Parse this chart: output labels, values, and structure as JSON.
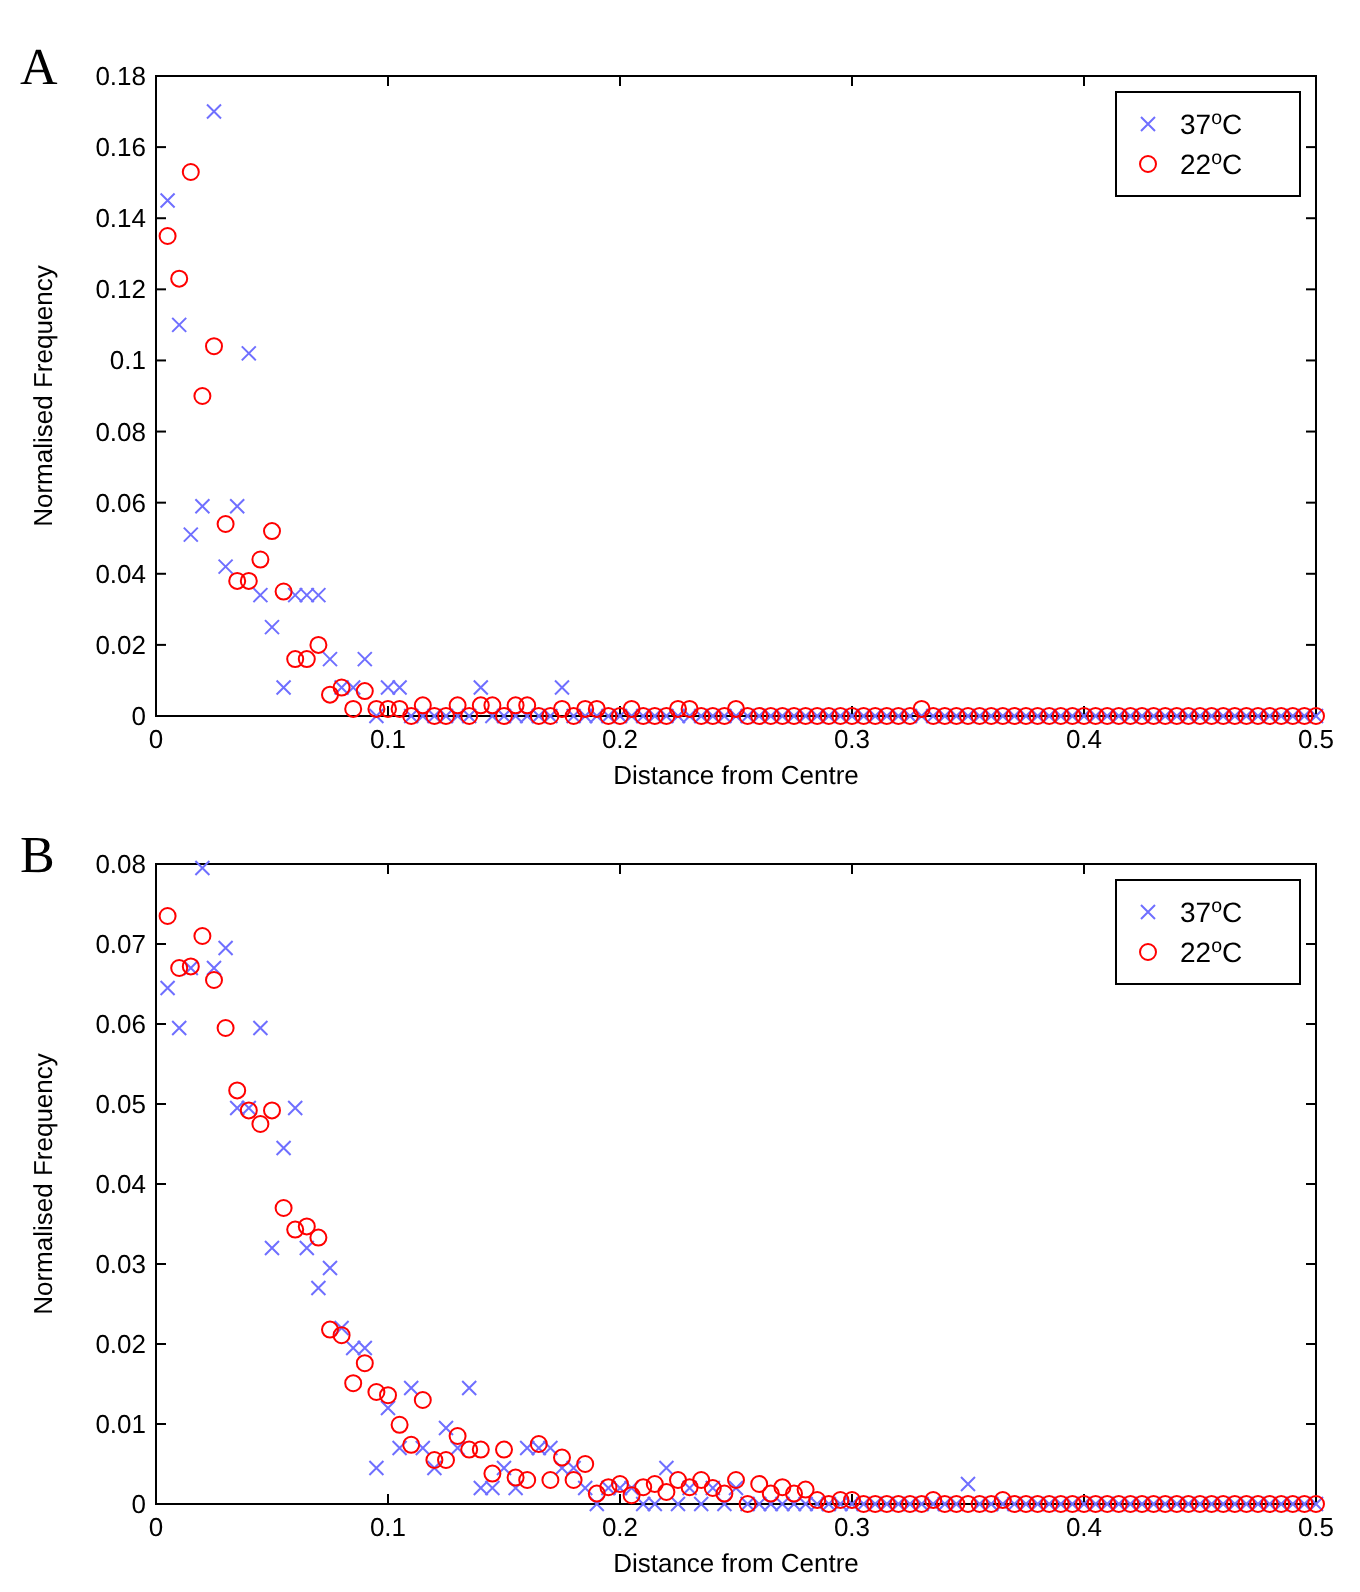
{
  "chart_data": [
    {
      "type": "scatter",
      "title": "A",
      "xlabel": "Distance from Centre",
      "ylabel": "Normalised Frequency",
      "legend": "top right",
      "xlim": [
        0,
        0.5
      ],
      "xticks": [
        0,
        0.1,
        0.2,
        0.3,
        0.4,
        0.5
      ],
      "ylim": [
        0,
        0.18
      ],
      "yticks": [
        0,
        0.02,
        0.04,
        0.06,
        0.08,
        0.1,
        0.12,
        0.14,
        0.16,
        0.18
      ],
      "x": [
        0.005,
        0.01,
        0.015,
        0.02,
        0.025,
        0.03,
        0.035,
        0.04,
        0.045,
        0.05,
        0.055,
        0.06,
        0.065,
        0.07,
        0.075,
        0.08,
        0.085,
        0.09,
        0.095,
        0.1,
        0.105,
        0.11,
        0.115,
        0.12,
        0.125,
        0.13,
        0.135,
        0.14,
        0.145,
        0.15,
        0.155,
        0.16,
        0.165,
        0.17,
        0.175,
        0.18,
        0.185,
        0.19,
        0.195,
        0.2,
        0.205,
        0.21,
        0.215,
        0.22,
        0.225,
        0.23,
        0.235,
        0.24,
        0.245,
        0.25,
        0.255,
        0.26,
        0.265,
        0.27,
        0.275,
        0.28,
        0.285,
        0.29,
        0.295,
        0.3,
        0.305,
        0.31,
        0.315,
        0.32,
        0.325,
        0.33,
        0.335,
        0.34,
        0.345,
        0.35,
        0.355,
        0.36,
        0.365,
        0.37,
        0.375,
        0.38,
        0.385,
        0.39,
        0.395,
        0.4,
        0.405,
        0.41,
        0.415,
        0.42,
        0.425,
        0.43,
        0.435,
        0.44,
        0.445,
        0.45,
        0.455,
        0.46,
        0.465,
        0.47,
        0.475,
        0.48,
        0.485,
        0.49,
        0.495,
        0.5
      ],
      "series": [
        {
          "name": "37$^{o}$C",
          "color": "#6f6fff",
          "marker": "cross",
          "values": [
            0.145,
            0.11,
            0.051,
            0.059,
            0.17,
            0.042,
            0.059,
            0.102,
            0.034,
            0.025,
            0.008,
            0.034,
            0.034,
            0.034,
            0.016,
            0.008,
            0.008,
            0.016,
            0,
            0.008,
            0.008,
            0,
            0,
            0,
            0,
            0,
            0,
            0.008,
            0,
            0,
            0,
            0,
            0,
            0,
            0.008,
            0,
            0,
            0,
            0,
            0,
            0,
            0,
            0,
            0,
            0,
            0,
            0,
            0,
            0,
            0,
            0,
            0,
            0,
            0,
            0,
            0,
            0,
            0,
            0,
            0,
            0,
            0,
            0,
            0,
            0,
            0,
            0,
            0,
            0,
            0,
            0,
            0,
            0,
            0,
            0,
            0,
            0,
            0,
            0,
            0,
            0,
            0,
            0,
            0,
            0,
            0,
            0,
            0,
            0,
            0,
            0,
            0,
            0,
            0,
            0,
            0,
            0,
            0,
            0,
            0
          ]
        },
        {
          "name": "22$^{o}$C",
          "color": "#ff0000",
          "marker": "circle",
          "values": [
            0.135,
            0.123,
            0.153,
            0.09,
            0.104,
            0.054,
            0.038,
            0.038,
            0.044,
            0.052,
            0.035,
            0.016,
            0.016,
            0.02,
            0.006,
            0.008,
            0.002,
            0.007,
            0.002,
            0.002,
            0.002,
            0,
            0.003,
            0,
            0,
            0.003,
            0,
            0.003,
            0.003,
            0,
            0.003,
            0.003,
            0,
            0,
            0.002,
            0,
            0.002,
            0.002,
            0,
            0,
            0.002,
            0,
            0,
            0,
            0.002,
            0.002,
            0,
            0,
            0,
            0.002,
            0,
            0,
            0,
            0,
            0,
            0,
            0,
            0,
            0,
            0,
            0,
            0,
            0,
            0,
            0,
            0.002,
            0,
            0,
            0,
            0,
            0,
            0,
            0,
            0,
            0,
            0,
            0,
            0,
            0,
            0,
            0,
            0,
            0,
            0,
            0,
            0,
            0,
            0,
            0,
            0,
            0,
            0,
            0,
            0,
            0,
            0,
            0,
            0,
            0,
            0
          ]
        }
      ]
    },
    {
      "type": "scatter",
      "title": "B",
      "xlabel": "Distance from Centre",
      "ylabel": "Normalised Frequency",
      "legend": "top right",
      "xlim": [
        0,
        0.5
      ],
      "xticks": [
        0,
        0.1,
        0.2,
        0.3,
        0.4,
        0.5
      ],
      "ylim": [
        0,
        0.08
      ],
      "yticks": [
        0,
        0.01,
        0.02,
        0.03,
        0.04,
        0.05,
        0.06,
        0.07,
        0.08
      ],
      "x": [
        0.005,
        0.01,
        0.015,
        0.02,
        0.025,
        0.03,
        0.035,
        0.04,
        0.045,
        0.05,
        0.055,
        0.06,
        0.065,
        0.07,
        0.075,
        0.08,
        0.085,
        0.09,
        0.095,
        0.1,
        0.105,
        0.11,
        0.115,
        0.12,
        0.125,
        0.13,
        0.135,
        0.14,
        0.145,
        0.15,
        0.155,
        0.16,
        0.165,
        0.17,
        0.175,
        0.18,
        0.185,
        0.19,
        0.195,
        0.2,
        0.205,
        0.21,
        0.215,
        0.22,
        0.225,
        0.23,
        0.235,
        0.24,
        0.245,
        0.25,
        0.255,
        0.26,
        0.265,
        0.27,
        0.275,
        0.28,
        0.285,
        0.29,
        0.295,
        0.3,
        0.305,
        0.31,
        0.315,
        0.32,
        0.325,
        0.33,
        0.335,
        0.34,
        0.345,
        0.35,
        0.355,
        0.36,
        0.365,
        0.37,
        0.375,
        0.38,
        0.385,
        0.39,
        0.395,
        0.4,
        0.405,
        0.41,
        0.415,
        0.42,
        0.425,
        0.43,
        0.435,
        0.44,
        0.445,
        0.45,
        0.455,
        0.46,
        0.465,
        0.47,
        0.475,
        0.48,
        0.485,
        0.49,
        0.495,
        0.5
      ],
      "series": [
        {
          "name": "37$^{o}$C",
          "color": "#6f6fff",
          "marker": "cross",
          "values": [
            0.0645,
            0.0595,
            0.067,
            0.0795,
            0.067,
            0.0695,
            0.0495,
            0.0495,
            0.0595,
            0.032,
            0.0445,
            0.0495,
            0.032,
            0.027,
            0.0295,
            0.022,
            0.0195,
            0.0195,
            0.0045,
            0.012,
            0.007,
            0.0145,
            0.007,
            0.0045,
            0.0095,
            0.007,
            0.0145,
            0.002,
            0.002,
            0.0045,
            0.002,
            0.007,
            0.007,
            0.007,
            0.0045,
            0.0045,
            0.002,
            0,
            0.002,
            0.002,
            0.002,
            0,
            0,
            0.0045,
            0,
            0.002,
            0,
            0.002,
            0,
            0.002,
            0,
            0,
            0,
            0,
            0,
            0,
            0,
            0,
            0,
            0,
            0,
            0,
            0,
            0,
            0,
            0,
            0,
            0,
            0,
            0.0025,
            0,
            0,
            0,
            0,
            0,
            0,
            0,
            0,
            0,
            0,
            0,
            0,
            0,
            0,
            0,
            0,
            0,
            0,
            0,
            0,
            0,
            0,
            0,
            0,
            0,
            0,
            0,
            0,
            0,
            0
          ]
        },
        {
          "name": "22$^{o}$C",
          "color": "#ff0000",
          "marker": "circle",
          "values": [
            0.0735,
            0.067,
            0.0672,
            0.071,
            0.0655,
            0.0595,
            0.0517,
            0.0492,
            0.0475,
            0.0492,
            0.037,
            0.0343,
            0.0347,
            0.0333,
            0.0218,
            0.0211,
            0.0151,
            0.0176,
            0.014,
            0.0136,
            0.0099,
            0.0074,
            0.013,
            0.0055,
            0.0055,
            0.0085,
            0.0068,
            0.0068,
            0.0038,
            0.0068,
            0.0033,
            0.003,
            0.0075,
            0.003,
            0.0058,
            0.003,
            0.005,
            0.0013,
            0.0021,
            0.0025,
            0.0011,
            0.0021,
            0.0025,
            0.0015,
            0.003,
            0.0021,
            0.003,
            0.002,
            0.0013,
            0.003,
            0,
            0.0025,
            0.0013,
            0.0021,
            0.0013,
            0.0018,
            0.0005,
            0,
            0.0005,
            0.0005,
            0,
            0,
            0,
            0,
            0,
            0,
            0.0005,
            0,
            0,
            0,
            0,
            0,
            0.0005,
            0,
            0,
            0,
            0,
            0,
            0,
            0,
            0,
            0,
            0,
            0,
            0,
            0,
            0,
            0,
            0,
            0,
            0,
            0,
            0,
            0,
            0,
            0,
            0,
            0,
            0,
            0
          ]
        }
      ]
    }
  ]
}
